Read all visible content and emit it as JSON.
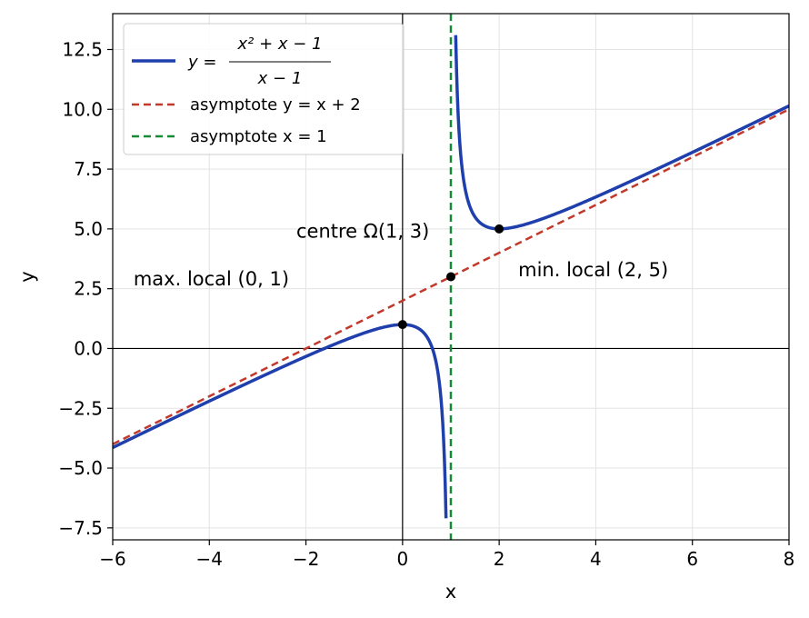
{
  "chart_data": {
    "type": "line",
    "title": "",
    "xlabel": "x",
    "ylabel": "y",
    "xlim": [
      -6,
      8
    ],
    "ylim": [
      -8,
      14
    ],
    "xticks": [
      -6,
      -4,
      -2,
      0,
      2,
      4,
      6,
      8
    ],
    "yticks": [
      -7.5,
      -5.0,
      -2.5,
      0.0,
      2.5,
      5.0,
      7.5,
      10.0,
      12.5
    ],
    "xtick_labels": [
      "−6",
      "−4",
      "−2",
      "0",
      "2",
      "4",
      "6",
      "8"
    ],
    "ytick_labels": [
      "−7.5",
      "−5.0",
      "−2.5",
      "0.0",
      "2.5",
      "5.0",
      "7.5",
      "10.0",
      "12.5"
    ],
    "grid": true,
    "legend_position": "upper-left",
    "series": [
      {
        "name_prefix": "y = ",
        "name_numerator": "x² + x − 1",
        "name_denominator": "x − 1",
        "function": "(x^2 + x - 1)/(x - 1)",
        "branches": [
          [
            -6,
            0.9
          ],
          [
            1.1,
            8
          ]
        ],
        "color": "#1f3fad",
        "style": "solid"
      },
      {
        "name": "asymptote y = x + 2",
        "function": "x + 2",
        "domain": [
          -6,
          8
        ],
        "color": "#c0392b",
        "style": "dashed"
      },
      {
        "name": "asymptote x = 1",
        "vertical_x": 1,
        "color": "#138a36",
        "style": "dashed"
      }
    ],
    "points": [
      {
        "x": 0,
        "y": 1,
        "label": "max. local (0, 1)"
      },
      {
        "x": 1,
        "y": 3,
        "label": "centre Ω(1, 3)"
      },
      {
        "x": 2,
        "y": 5,
        "label": "min. local (2, 5)"
      }
    ]
  }
}
